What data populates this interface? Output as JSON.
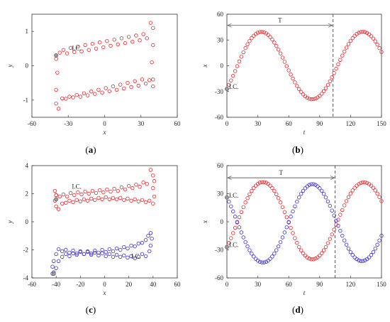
{
  "chart_data": [
    {
      "id": "a",
      "type": "scatter",
      "panel_label": "(a)",
      "xlabel": "x",
      "ylabel": "y",
      "xlim": [
        -60,
        60
      ],
      "ylim": [
        -1.5,
        1.5
      ],
      "xticks": [
        -60,
        -30,
        0,
        30,
        60
      ],
      "yticks": [
        -1,
        0,
        1
      ],
      "annotations": [
        {
          "text": "I.C.",
          "x": -27,
          "y": 0.45
        }
      ],
      "series": [
        {
          "color": "#e8262d",
          "marker": "circle",
          "x": [
            -40,
            -37,
            -34,
            -31,
            -28,
            -25,
            -22,
            -19,
            -16,
            -13,
            -10,
            -7,
            -4,
            -1,
            2,
            5,
            8,
            11,
            14,
            17,
            20,
            23,
            26,
            29,
            32,
            35,
            38,
            40,
            40,
            39,
            40,
            40,
            37,
            34,
            31,
            28,
            25,
            22,
            19,
            16,
            13,
            10,
            7,
            4,
            1,
            -2,
            -5,
            -8,
            -11,
            -14,
            -17,
            -20,
            -23,
            -26,
            -29,
            -32,
            -35,
            -38,
            -40,
            -40,
            -39,
            -40,
            -40
          ],
          "y": [
            0.3,
            0.38,
            0.46,
            0.36,
            0.52,
            0.4,
            0.56,
            0.42,
            0.6,
            0.46,
            0.64,
            0.5,
            0.68,
            0.54,
            0.72,
            0.58,
            0.76,
            0.62,
            0.8,
            0.66,
            0.84,
            0.7,
            0.88,
            0.74,
            0.92,
            0.8,
            1.25,
            1.1,
            0.6,
            0.1,
            -0.4,
            -0.6,
            -0.42,
            -0.52,
            -0.4,
            -0.58,
            -0.45,
            -0.62,
            -0.5,
            -0.66,
            -0.55,
            -0.7,
            -0.6,
            -0.74,
            -0.65,
            -0.78,
            -0.7,
            -0.82,
            -0.75,
            -0.86,
            -0.8,
            -0.9,
            -0.85,
            -0.92,
            -0.9,
            -0.96,
            -0.95,
            -1.25,
            -1.1,
            -0.7,
            -0.2,
            0.2,
            0.3
          ]
        }
      ]
    },
    {
      "id": "b",
      "type": "scatter",
      "panel_label": "(b)",
      "xlabel": "t",
      "ylabel": "x",
      "xlim": [
        0,
        150
      ],
      "ylim": [
        -60,
        60
      ],
      "xticks": [
        0,
        30,
        60,
        90,
        120,
        150
      ],
      "yticks": [
        -60,
        -30,
        0,
        30,
        60
      ],
      "vline": 103,
      "period_arrow": {
        "label": "T",
        "from": 0,
        "to": 103,
        "y": 47
      },
      "annotations": [
        {
          "text": "I.C.",
          "x": 2,
          "y": -27
        }
      ],
      "series": [
        {
          "color": "#e8262d",
          "marker": "circle",
          "x": [
            0,
            2,
            4,
            6,
            8,
            10,
            12,
            14,
            16,
            18,
            20,
            22,
            24,
            26,
            28,
            30,
            32,
            34,
            36,
            38,
            40,
            42,
            44,
            46,
            48,
            50,
            52,
            54,
            56,
            58,
            60,
            62,
            64,
            66,
            68,
            70,
            72,
            74,
            76,
            78,
            80,
            82,
            84,
            86,
            88,
            90,
            92,
            94,
            96,
            98,
            100,
            102,
            104,
            106,
            108,
            110,
            112,
            114,
            116,
            118,
            120,
            122,
            124,
            126,
            128,
            130,
            132,
            134,
            136,
            138,
            140,
            142,
            144,
            146,
            148,
            150
          ],
          "y": [
            -27,
            -22.2,
            -17.1,
            -11.7,
            -6.2,
            -0.5,
            5.1,
            10.5,
            15.7,
            20.6,
            25,
            28.8,
            32.2,
            34.9,
            37,
            38.5,
            39.3,
            39.4,
            38.9,
            37.7,
            35.9,
            33.5,
            30.5,
            27,
            23.1,
            18.8,
            14.3,
            9.5,
            4.6,
            -0.4,
            -5.4,
            -10.2,
            -14.9,
            -19.3,
            -23.5,
            -27.2,
            -30.5,
            -33.3,
            -35.6,
            -37.3,
            -38.5,
            -39,
            -38.9,
            -38.2,
            -36.9,
            -35.1,
            -32.6,
            -29.7,
            -26.2,
            -22.3,
            -18,
            -13.4,
            -8.5,
            -3.4,
            1.7,
            6.8,
            11.8,
            16.6,
            21.1,
            25.3,
            29,
            32.2,
            34.9,
            37,
            38.5,
            39.4,
            39.6,
            39.2,
            38.2,
            36.6,
            34.4,
            31.7,
            28.4,
            24.7,
            20.6,
            16.1
          ]
        }
      ]
    },
    {
      "id": "c",
      "type": "scatter",
      "panel_label": "(c)",
      "xlabel": "x",
      "ylabel": "y",
      "xlim": [
        -60,
        60
      ],
      "ylim": [
        -4,
        4
      ],
      "xticks": [
        -60,
        -40,
        -20,
        0,
        20,
        40,
        60
      ],
      "yticks": [
        -4,
        -2,
        0,
        2,
        4
      ],
      "annotations": [
        {
          "text": "I.C.",
          "x": -27,
          "y": 2.35
        },
        {
          "text": "I.C.",
          "x": 22,
          "y": -2.6
        }
      ],
      "series": [
        {
          "color": "#e8262d",
          "marker": "circle",
          "x": [
            -40,
            -37,
            -34,
            -31,
            -28,
            -25,
            -22,
            -19,
            -16,
            -13,
            -10,
            -7,
            -4,
            -1,
            2,
            5,
            8,
            11,
            14,
            17,
            20,
            23,
            26,
            29,
            32,
            35,
            38,
            40,
            41,
            40,
            41,
            40,
            37,
            34,
            31,
            28,
            25,
            22,
            19,
            16,
            13,
            10,
            7,
            4,
            1,
            -2,
            -5,
            -8,
            -11,
            -14,
            -17,
            -20,
            -23,
            -26,
            -29,
            -32,
            -35,
            -38,
            -40,
            -41,
            -40,
            -41,
            -40
          ],
          "y": [
            1.6,
            1.8,
            1.95,
            1.8,
            2.05,
            1.9,
            2.1,
            1.95,
            2.15,
            2,
            2.2,
            2.05,
            2.25,
            2.1,
            2.3,
            2.15,
            2.35,
            2.2,
            2.45,
            2.3,
            2.55,
            2.4,
            2.65,
            2.5,
            2.8,
            2.7,
            3.7,
            3.3,
            2.9,
            2.4,
            1.8,
            1.3,
            1.5,
            1.4,
            1.55,
            1.45,
            1.6,
            1.5,
            1.65,
            1.55,
            1.7,
            1.6,
            1.7,
            1.6,
            1.75,
            1.6,
            1.7,
            1.55,
            1.65,
            1.5,
            1.6,
            1.45,
            1.55,
            1.4,
            1.5,
            1.35,
            1.3,
            0.9,
            1.1,
            1.5,
            1.9,
            2.2,
            1.9
          ]
        },
        {
          "color": "#3b2fd1",
          "marker": "circle",
          "x": [
            -42,
            -40,
            -38,
            -35,
            -32,
            -29,
            -26,
            -23,
            -20,
            -17,
            -14,
            -11,
            -8,
            -5,
            -2,
            1,
            4,
            7,
            10,
            13,
            16,
            19,
            22,
            25,
            28,
            31,
            34,
            36,
            38,
            39,
            38,
            37,
            34,
            31,
            28,
            25,
            22,
            19,
            16,
            13,
            10,
            7,
            4,
            1,
            -2,
            -5,
            -8,
            -11,
            -14,
            -17,
            -20,
            -23,
            -26,
            -29,
            -32,
            -35,
            -38,
            -40,
            -42,
            -43,
            -42,
            -43
          ],
          "y": [
            -3.7,
            -3.3,
            -2.8,
            -2.5,
            -2.3,
            -2.45,
            -2.25,
            -2.35,
            -2.15,
            -2.3,
            -2.1,
            -2.25,
            -2.05,
            -2.2,
            -2,
            -2.15,
            -1.95,
            -2.1,
            -1.9,
            -2,
            -1.8,
            -1.9,
            -1.7,
            -1.75,
            -1.55,
            -1.5,
            -1.3,
            -1,
            -0.8,
            -1.2,
            -1.7,
            -2.1,
            -2.45,
            -2.3,
            -2.5,
            -2.6,
            -2.45,
            -2.55,
            -2.4,
            -2.5,
            -2.35,
            -2.5,
            -2.3,
            -2.45,
            -2.25,
            -2.4,
            -2.2,
            -2.35,
            -2.15,
            -2.3,
            -2.1,
            -2.25,
            -2.05,
            -2.2,
            -2,
            -2.1,
            -1.95,
            -2.3,
            -2.8,
            -3.2,
            -3.6,
            -3.7
          ]
        }
      ]
    },
    {
      "id": "d",
      "type": "scatter",
      "panel_label": "(d)",
      "xlabel": "t",
      "ylabel": "x",
      "xlim": [
        0,
        150
      ],
      "ylim": [
        -60,
        60
      ],
      "xticks": [
        0,
        30,
        60,
        90,
        120,
        150
      ],
      "yticks": [
        -60,
        -30,
        0,
        30,
        60
      ],
      "vline": 105,
      "period_arrow": {
        "label": "T",
        "from": 0,
        "to": 105,
        "y": 47
      },
      "annotations": [
        {
          "text": "I.C.",
          "x": 2,
          "y": 26
        },
        {
          "text": "I.C.",
          "x": 2,
          "y": -27
        }
      ],
      "series": [
        {
          "color": "#e8262d",
          "marker": "circle",
          "x": [
            0,
            2,
            4,
            6,
            8,
            10,
            12,
            14,
            16,
            18,
            20,
            22,
            24,
            26,
            28,
            30,
            32,
            34,
            36,
            38,
            40,
            42,
            44,
            46,
            48,
            50,
            52,
            54,
            56,
            58,
            60,
            62,
            64,
            66,
            68,
            70,
            72,
            74,
            76,
            78,
            80,
            82,
            84,
            86,
            88,
            90,
            92,
            94,
            96,
            98,
            100,
            102,
            104,
            106,
            108,
            110,
            112,
            114,
            116,
            118,
            120,
            122,
            124,
            126,
            128,
            130,
            132,
            134,
            136,
            138,
            140,
            142,
            144,
            146,
            148,
            150
          ],
          "y": [
            -27,
            -22.5,
            -17.5,
            -12.1,
            -6.5,
            -0.8,
            4.9,
            10.4,
            15.7,
            20.7,
            25.3,
            29.4,
            33,
            36.1,
            38.6,
            40.5,
            41.8,
            42.4,
            42.4,
            41.8,
            40.5,
            38.6,
            36.1,
            33,
            29.4,
            25.3,
            20.7,
            15.7,
            10.4,
            4.9,
            -0.8,
            -6.5,
            -12.1,
            -17.5,
            -22.5,
            -27,
            -30.5,
            -33.6,
            -36.1,
            -38,
            -39.3,
            -40,
            -40,
            -39.3,
            -38,
            -36.1,
            -33.6,
            -30.5,
            -27,
            -22.8,
            -18.3,
            -13.5,
            -8.4,
            -3.1,
            2.2,
            7.5,
            12.6,
            17.5,
            22.1,
            26.4,
            30.2,
            33.5,
            36.3,
            38.6,
            40.3,
            41.5,
            42.1,
            42.1,
            41.5,
            40.3,
            38.6,
            36.3,
            33.5,
            30.2,
            26.4,
            22.1
          ]
        },
        {
          "color": "#3b2fd1",
          "marker": "circle",
          "x": [
            0,
            2,
            4,
            6,
            8,
            10,
            12,
            14,
            16,
            18,
            20,
            22,
            24,
            26,
            28,
            30,
            32,
            34,
            36,
            38,
            40,
            42,
            44,
            46,
            48,
            50,
            52,
            54,
            56,
            58,
            60,
            62,
            64,
            66,
            68,
            70,
            72,
            74,
            76,
            78,
            80,
            82,
            84,
            86,
            88,
            90,
            92,
            94,
            96,
            98,
            100,
            102,
            104,
            106,
            108,
            110,
            112,
            114,
            116,
            118,
            120,
            122,
            124,
            126,
            128,
            130,
            132,
            134,
            136,
            138,
            140,
            142,
            144,
            146,
            148,
            150
          ],
          "y": [
            26,
            21.5,
            16.5,
            11.1,
            5.5,
            -0.2,
            -5.9,
            -11.4,
            -16.7,
            -21.7,
            -26.3,
            -30.4,
            -34,
            -37.1,
            -39.6,
            -41.5,
            -42.8,
            -43.4,
            -43.4,
            -42.8,
            -41.5,
            -39.6,
            -37.1,
            -34,
            -30.4,
            -26.3,
            -21.7,
            -16.7,
            -11.4,
            -5.9,
            -0.2,
            5.5,
            11.1,
            16.5,
            21.5,
            26,
            29.8,
            33.1,
            35.8,
            37.9,
            39.4,
            40.2,
            40.2,
            39.4,
            37.9,
            35.8,
            33.1,
            29.8,
            26,
            21.7,
            17,
            12,
            6.7,
            1.2,
            -4.3,
            -9.7,
            -14.9,
            -19.9,
            -24.5,
            -28.7,
            -32.4,
            -35.5,
            -38,
            -39.9,
            -41.2,
            -41.9,
            -41.9,
            -41.2,
            -39.9,
            -38,
            -35.5,
            -32.4,
            -28.7,
            -24.5,
            -19.9,
            -14.9
          ]
        }
      ]
    }
  ]
}
